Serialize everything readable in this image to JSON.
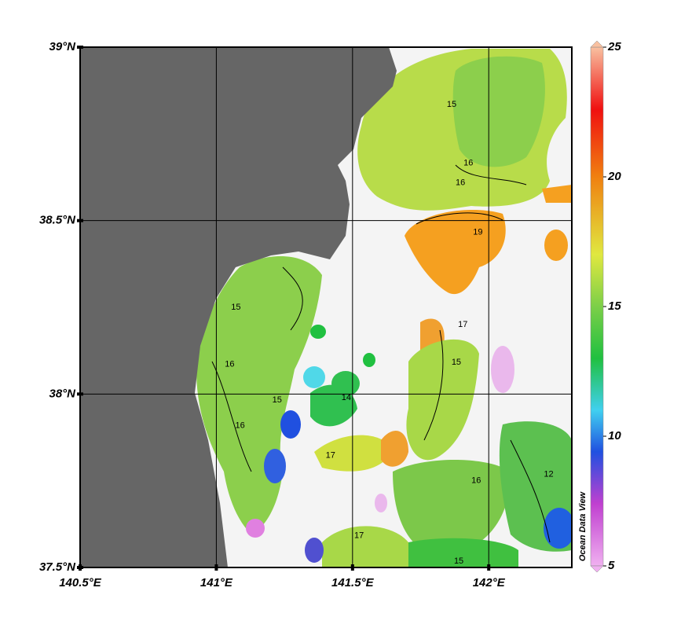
{
  "map": {
    "xlim": [
      140.5,
      142.305
    ],
    "ylim": [
      37.5,
      39.0
    ],
    "xticks": [
      {
        "value": 140.5,
        "label": "140.5°E"
      },
      {
        "value": 141,
        "label": "141°E"
      },
      {
        "value": 141.5,
        "label": "141.5°E"
      },
      {
        "value": 142,
        "label": "142°E"
      }
    ],
    "yticks": [
      {
        "value": 39,
        "label": "39°N"
      },
      {
        "value": 38.5,
        "label": "38.5°N"
      },
      {
        "value": 38,
        "label": "38°N"
      },
      {
        "value": 37.5,
        "label": "37.5°N"
      }
    ],
    "grid": true,
    "colorbar": {
      "clim": [
        5,
        25
      ],
      "ticks": [
        25,
        20,
        15,
        10,
        5
      ],
      "label": "Ocean Data View"
    },
    "contour_labels": [
      {
        "value": 15,
        "lon": 141.864,
        "lat": 38.834
      },
      {
        "value": 16,
        "lon": 141.925,
        "lat": 38.666
      },
      {
        "value": 16,
        "lon": 141.896,
        "lat": 38.609
      },
      {
        "value": 19,
        "lon": 141.96,
        "lat": 38.466
      },
      {
        "value": 15,
        "lon": 141.072,
        "lat": 38.25
      },
      {
        "value": 16,
        "lon": 141.049,
        "lat": 38.086
      },
      {
        "value": 15,
        "lon": 141.223,
        "lat": 37.982
      },
      {
        "value": 16,
        "lon": 141.087,
        "lat": 37.909
      },
      {
        "value": 15,
        "lon": 141.881,
        "lat": 38.091
      },
      {
        "value": 17,
        "lon": 141.905,
        "lat": 38.2
      },
      {
        "value": 17,
        "lon": 141.419,
        "lat": 37.823
      },
      {
        "value": 16,
        "lon": 141.954,
        "lat": 37.75
      },
      {
        "value": 12,
        "lon": 142.22,
        "lat": 37.768
      },
      {
        "value": 15,
        "lon": 141.89,
        "lat": 37.518
      },
      {
        "value": 17,
        "lon": 141.524,
        "lat": 37.591
      },
      {
        "value": 14,
        "lon": 141.477,
        "lat": 37.989
      }
    ]
  }
}
